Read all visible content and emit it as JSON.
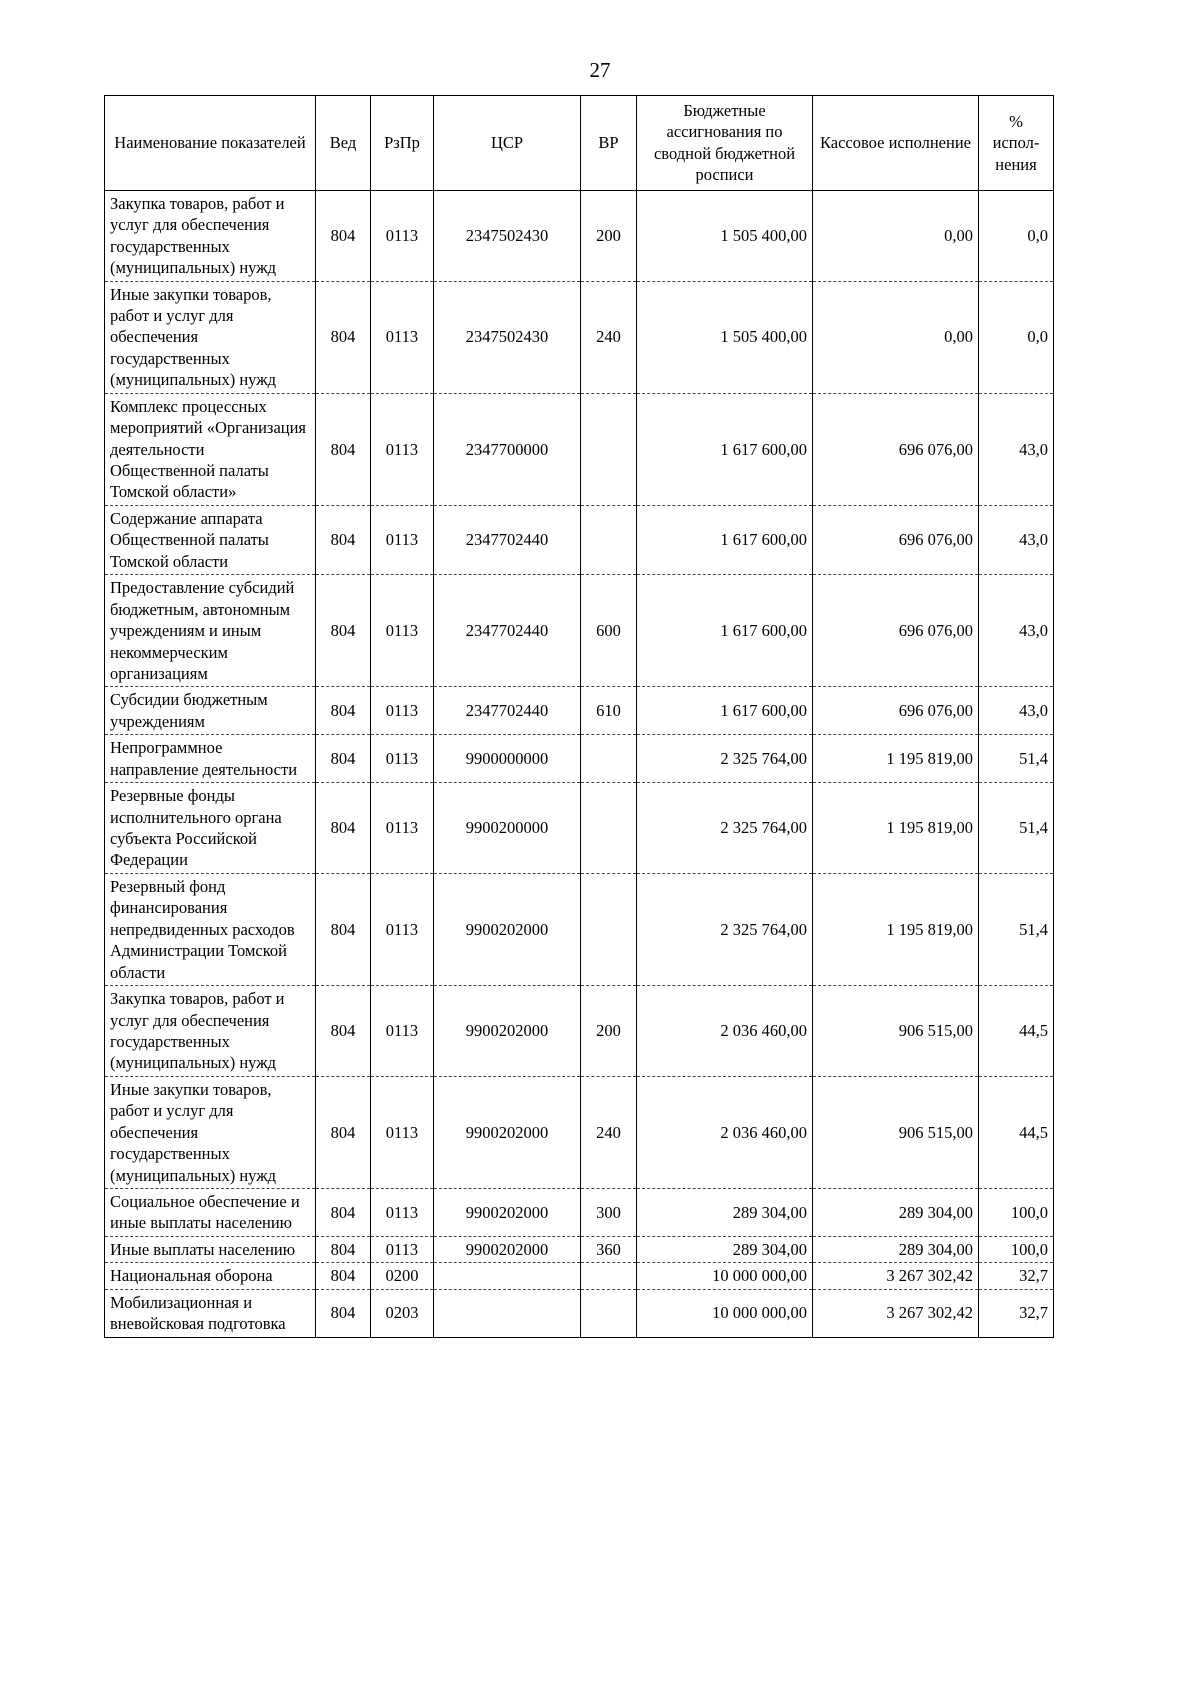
{
  "page": {
    "number": "27"
  },
  "table": {
    "headers": [
      "Наименование показателей",
      "Вед",
      "РзПр",
      "ЦСР",
      "ВР",
      "Бюджетные ассигнования по сводной бюджетной росписи",
      "Кассовое исполнение",
      "% испол-нения"
    ],
    "rows": [
      {
        "name": "Закупка товаров, работ и услуг для обеспечения государственных (муниципальных) нужд",
        "ved": "804",
        "rzpr": "0113",
        "csr": "2347502430",
        "vr": "200",
        "budget": "1 505 400,00",
        "cash": "0,00",
        "pct": "0,0"
      },
      {
        "name": "Иные закупки товаров, работ и услуг для обеспечения государственных (муниципальных) нужд",
        "ved": "804",
        "rzpr": "0113",
        "csr": "2347502430",
        "vr": "240",
        "budget": "1 505 400,00",
        "cash": "0,00",
        "pct": "0,0"
      },
      {
        "name": "Комплекс процессных мероприятий «Организация деятельности Общественной палаты Томской области»",
        "ved": "804",
        "rzpr": "0113",
        "csr": "2347700000",
        "vr": "",
        "budget": "1 617 600,00",
        "cash": "696 076,00",
        "pct": "43,0"
      },
      {
        "name": "Содержание аппарата Общественной палаты Томской области",
        "ved": "804",
        "rzpr": "0113",
        "csr": "2347702440",
        "vr": "",
        "budget": "1 617 600,00",
        "cash": "696 076,00",
        "pct": "43,0"
      },
      {
        "name": "Предоставление субсидий бюджетным, автономным учреждениям и иным некоммерческим организациям",
        "ved": "804",
        "rzpr": "0113",
        "csr": "2347702440",
        "vr": "600",
        "budget": "1 617 600,00",
        "cash": "696 076,00",
        "pct": "43,0"
      },
      {
        "name": "Субсидии бюджетным учреждениям",
        "ved": "804",
        "rzpr": "0113",
        "csr": "2347702440",
        "vr": "610",
        "budget": "1 617 600,00",
        "cash": "696 076,00",
        "pct": "43,0"
      },
      {
        "name": "Непрограммное направление деятельности",
        "ved": "804",
        "rzpr": "0113",
        "csr": "9900000000",
        "vr": "",
        "budget": "2 325 764,00",
        "cash": "1 195 819,00",
        "pct": "51,4"
      },
      {
        "name": "Резервные фонды исполнительного органа субъекта Российской Федерации",
        "ved": "804",
        "rzpr": "0113",
        "csr": "9900200000",
        "vr": "",
        "budget": "2 325 764,00",
        "cash": "1 195 819,00",
        "pct": "51,4"
      },
      {
        "name": "Резервный фонд финансирования непредвиденных расходов Администрации Томской области",
        "ved": "804",
        "rzpr": "0113",
        "csr": "9900202000",
        "vr": "",
        "budget": "2 325 764,00",
        "cash": "1 195 819,00",
        "pct": "51,4"
      },
      {
        "name": "Закупка товаров, работ и услуг для обеспечения государственных (муниципальных) нужд",
        "ved": "804",
        "rzpr": "0113",
        "csr": "9900202000",
        "vr": "200",
        "budget": "2 036 460,00",
        "cash": "906 515,00",
        "pct": "44,5"
      },
      {
        "name": "Иные закупки товаров, работ и услуг для обеспечения государственных (муниципальных) нужд",
        "ved": "804",
        "rzpr": "0113",
        "csr": "9900202000",
        "vr": "240",
        "budget": "2 036 460,00",
        "cash": "906 515,00",
        "pct": "44,5"
      },
      {
        "name": "Социальное обеспечение и иные выплаты населению",
        "ved": "804",
        "rzpr": "0113",
        "csr": "9900202000",
        "vr": "300",
        "budget": "289 304,00",
        "cash": "289 304,00",
        "pct": "100,0"
      },
      {
        "name": "Иные выплаты населению",
        "ved": "804",
        "rzpr": "0113",
        "csr": "9900202000",
        "vr": "360",
        "budget": "289 304,00",
        "cash": "289 304,00",
        "pct": "100,0"
      },
      {
        "name": "Национальная оборона",
        "ved": "804",
        "rzpr": "0200",
        "csr": "",
        "vr": "",
        "budget": "10 000 000,00",
        "cash": "3 267 302,42",
        "pct": "32,7"
      },
      {
        "name": "Мобилизационная и вневойсковая подготовка",
        "ved": "804",
        "rzpr": "0203",
        "csr": "",
        "vr": "",
        "budget": "10 000 000,00",
        "cash": "3 267 302,42",
        "pct": "32,7"
      }
    ]
  }
}
